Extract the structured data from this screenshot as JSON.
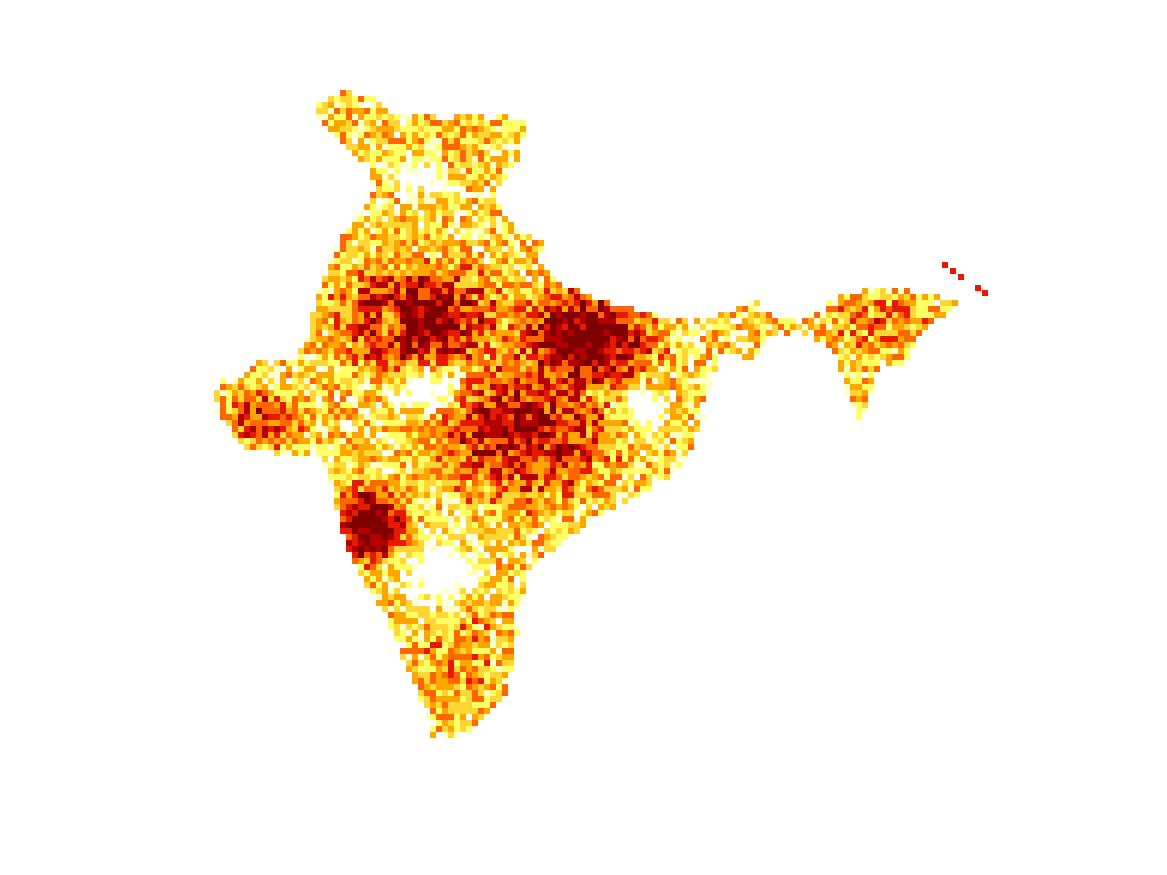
{
  "map": {
    "type": "raster-choropleth",
    "region": "India",
    "colormap": [
      "#ffffcc",
      "#ffff66",
      "#ffd633",
      "#ffa500",
      "#ff6600",
      "#e61a00",
      "#b30000",
      "#800000"
    ],
    "background_color": "#ffffff",
    "axes_visible": false,
    "legend_visible": false,
    "title": "",
    "intensity_hotspots": [
      {
        "name": "north-central-plains",
        "level": 0.82
      },
      {
        "name": "east-plateau",
        "level": 0.92
      },
      {
        "name": "west-deccan",
        "level": 0.95
      },
      {
        "name": "central-india",
        "level": 0.7
      },
      {
        "name": "southern-peninsula",
        "level": 0.35
      },
      {
        "name": "himalayan-north",
        "level": 0.25
      },
      {
        "name": "northeast",
        "level": 0.4
      },
      {
        "name": "west-coast-gujarat",
        "level": 0.6
      }
    ]
  }
}
